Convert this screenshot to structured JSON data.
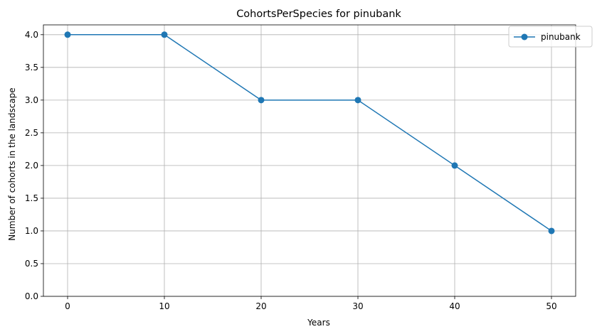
{
  "chart_data": {
    "type": "line",
    "title": "CohortsPerSpecies for pinubank",
    "xlabel": "Years",
    "ylabel": "Number of cohorts in the landscape",
    "xlim": [
      -2.5,
      52.5
    ],
    "ylim": [
      0,
      4.15
    ],
    "xticks": [
      0,
      10,
      20,
      30,
      40,
      50
    ],
    "xtick_labels": [
      "0",
      "10",
      "20",
      "30",
      "40",
      "50"
    ],
    "yticks": [
      0,
      0.5,
      1.0,
      1.5,
      2.0,
      2.5,
      3.0,
      3.5,
      4.0
    ],
    "ytick_labels": [
      "0.0",
      "0.5",
      "1.0",
      "1.5",
      "2.0",
      "2.5",
      "3.0",
      "3.5",
      "4.0"
    ],
    "grid": true,
    "legend_position": "top-right",
    "series": [
      {
        "name": "pinubank",
        "color": "#1f77b4",
        "marker": "circle",
        "x": [
          0,
          10,
          20,
          30,
          40,
          50
        ],
        "y": [
          4,
          4,
          3,
          3,
          2,
          1
        ]
      }
    ]
  }
}
